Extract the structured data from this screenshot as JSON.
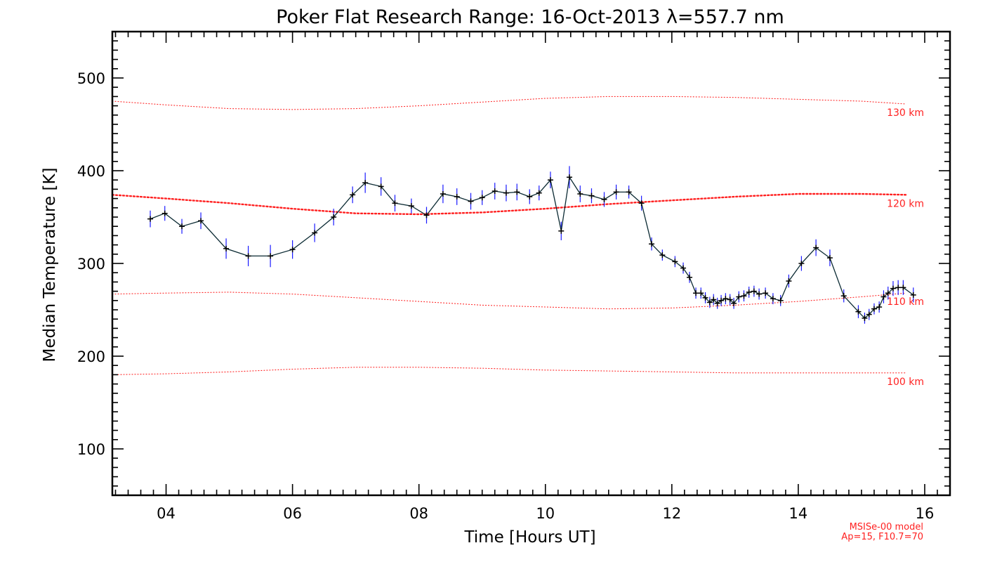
{
  "chart_data": {
    "type": "line",
    "title": "Poker Flat Research Range: 16-Oct-2013 λ=557.7 nm",
    "xlabel": "Time [Hours UT]",
    "ylabel": "Median Temperature [K]",
    "xlim": [
      3.15,
      16.4
    ],
    "ylim": [
      50,
      550
    ],
    "x_ticks": [
      4,
      6,
      8,
      10,
      12,
      14,
      16
    ],
    "x_tick_labels": [
      "04",
      "06",
      "08",
      "10",
      "12",
      "14",
      "16"
    ],
    "y_ticks": [
      100,
      200,
      300,
      400,
      500
    ],
    "y_tick_labels": [
      "100",
      "200",
      "300",
      "400",
      "500"
    ],
    "grid": false,
    "series": [
      {
        "name": "Median Temperature",
        "color": "#0b2a33",
        "marker": "plus",
        "error_color": "#1a1aff",
        "x": [
          3.75,
          3.98,
          4.25,
          4.55,
          4.95,
          5.3,
          5.65,
          6.0,
          6.35,
          6.65,
          6.95,
          7.15,
          7.4,
          7.62,
          7.88,
          8.12,
          8.38,
          8.6,
          8.82,
          9.0,
          9.2,
          9.38,
          9.55,
          9.75,
          9.9,
          10.08,
          10.25,
          10.38,
          10.55,
          10.73,
          10.93,
          11.12,
          11.32,
          11.52,
          11.68,
          11.85,
          12.05,
          12.18,
          12.28,
          12.38,
          12.46,
          12.53,
          12.6,
          12.66,
          12.72,
          12.78,
          12.85,
          12.92,
          12.98,
          13.06,
          13.14,
          13.22,
          13.3,
          13.38,
          13.48,
          13.6,
          13.72,
          13.85,
          14.05,
          14.28,
          14.5,
          14.72,
          14.95,
          15.05,
          15.12,
          15.2,
          15.28,
          15.35,
          15.42,
          15.5,
          15.58,
          15.66,
          15.82
        ],
        "y": [
          348,
          354,
          340,
          346,
          316,
          308,
          308,
          315,
          333,
          350,
          374,
          387,
          383,
          365,
          362,
          352,
          375,
          372,
          367,
          371,
          378,
          376,
          377,
          372,
          376,
          390,
          335,
          393,
          375,
          373,
          369,
          377,
          377,
          365,
          321,
          309,
          302,
          295,
          285,
          268,
          268,
          263,
          258,
          261,
          257,
          260,
          262,
          261,
          257,
          264,
          265,
          269,
          270,
          267,
          268,
          262,
          260,
          281,
          300,
          317,
          306,
          265,
          248,
          241,
          245,
          251,
          253,
          264,
          268,
          273,
          274,
          274,
          266
        ],
        "y_err": [
          9,
          8,
          8,
          9,
          11,
          11,
          12,
          10,
          10,
          9,
          9,
          11,
          10,
          9,
          8,
          9,
          10,
          9,
          9,
          8,
          9,
          9,
          9,
          8,
          8,
          9,
          10,
          12,
          9,
          8,
          8,
          8,
          7,
          8,
          7,
          6,
          6,
          6,
          6,
          6,
          6,
          6,
          6,
          6,
          6,
          6,
          6,
          6,
          6,
          6,
          6,
          6,
          6,
          6,
          6,
          6,
          6,
          7,
          8,
          9,
          9,
          7,
          7,
          6,
          6,
          6,
          6,
          7,
          7,
          8,
          8,
          8,
          8
        ]
      }
    ],
    "reference_curves": [
      {
        "name": "130 km",
        "label": "130 km",
        "color": "#ff2020",
        "style": "dotted",
        "x": [
          3.15,
          4,
          5,
          6,
          7,
          8,
          9,
          10,
          11,
          12,
          13,
          14,
          15,
          15.7
        ],
        "y": [
          475,
          471,
          467,
          466,
          467,
          470,
          474,
          478,
          480,
          480,
          479,
          477,
          475,
          472
        ]
      },
      {
        "name": "120 km",
        "label": "120 km",
        "color": "#ff2020",
        "style": "dotted-bold",
        "x": [
          3.15,
          4,
          5,
          6,
          7,
          8,
          9,
          10,
          11,
          12,
          13,
          14,
          15,
          15.7
        ],
        "y": [
          374,
          370,
          365,
          359,
          354,
          353,
          355,
          359,
          364,
          368,
          372,
          375,
          375,
          374
        ]
      },
      {
        "name": "110 km",
        "label": "110 km",
        "color": "#ff2020",
        "style": "dotted",
        "x": [
          3.15,
          4,
          5,
          6,
          7,
          8,
          9,
          10,
          11,
          12,
          13,
          14,
          15,
          15.7
        ],
        "y": [
          267,
          268,
          269,
          267,
          263,
          259,
          255,
          253,
          251,
          252,
          255,
          259,
          264,
          268
        ]
      },
      {
        "name": "100 km",
        "label": "100 km",
        "color": "#ff2020",
        "style": "dotted",
        "x": [
          3.15,
          4,
          5,
          6,
          7,
          8,
          9,
          10,
          11,
          12,
          13,
          14,
          15,
          15.7
        ],
        "y": [
          180,
          181,
          183,
          186,
          188,
          188,
          187,
          185,
          184,
          183,
          182,
          182,
          182,
          182
        ]
      }
    ],
    "annotations": {
      "model_line1": "MSISe-00 model",
      "model_line2": "Ap=15, F10.7=70",
      "color": "#ff2020"
    }
  }
}
